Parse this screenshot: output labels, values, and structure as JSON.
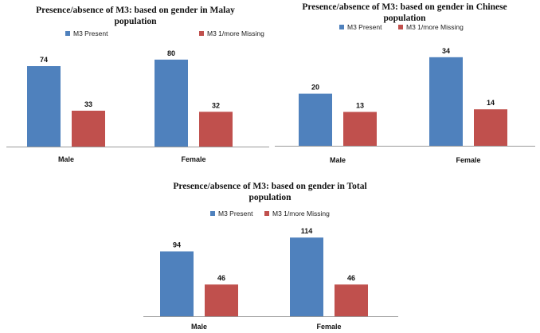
{
  "colors": {
    "present": "#4f81bd",
    "missing": "#c0504d"
  },
  "chart_data": [
    {
      "type": "bar",
      "title_lines": [
        "Presence/absence of M3: based on gender in Malay",
        "population"
      ],
      "categories": [
        "Male",
        "Female"
      ],
      "series": [
        {
          "name": "M3 Present",
          "values": [
            74,
            80
          ]
        },
        {
          "name": "M3 1/more Missing",
          "values": [
            33,
            32
          ]
        }
      ],
      "ylim": [
        0,
        85
      ],
      "legend": "top"
    },
    {
      "type": "bar",
      "title_lines": [
        "Presence/absence of M3: based on gender in Chinese",
        "population"
      ],
      "categories": [
        "Male",
        "Female"
      ],
      "series": [
        {
          "name": "M3 Present",
          "values": [
            20,
            34
          ]
        },
        {
          "name": "M3 1/more Missing",
          "values": [
            13,
            14
          ]
        }
      ],
      "ylim": [
        0,
        37
      ],
      "legend": "top"
    },
    {
      "type": "bar",
      "title_lines": [
        "Presence/absence of M3: based on gender in Total",
        "population"
      ],
      "categories": [
        "Male",
        "Female"
      ],
      "series": [
        {
          "name": "M3 Present",
          "values": [
            94,
            114
          ]
        },
        {
          "name": "M3 1/more Missing",
          "values": [
            46,
            46
          ]
        }
      ],
      "ylim": [
        0,
        120
      ],
      "legend": "top"
    }
  ]
}
